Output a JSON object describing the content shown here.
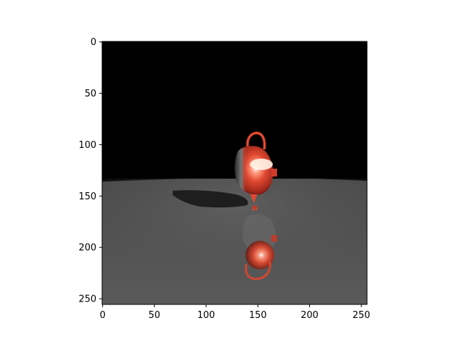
{
  "figure": {
    "x_ticks": [
      "0",
      "50",
      "100",
      "150",
      "200",
      "250"
    ],
    "y_ticks": [
      "0",
      "50",
      "100",
      "150",
      "200",
      "250"
    ]
  },
  "scene": {
    "subject": "red-teapot-icon",
    "background": "#000000",
    "floor": "#575757",
    "teapot": "#d63a2a",
    "highlight": "#fff3e6",
    "shadow": "#1e1e1e"
  }
}
